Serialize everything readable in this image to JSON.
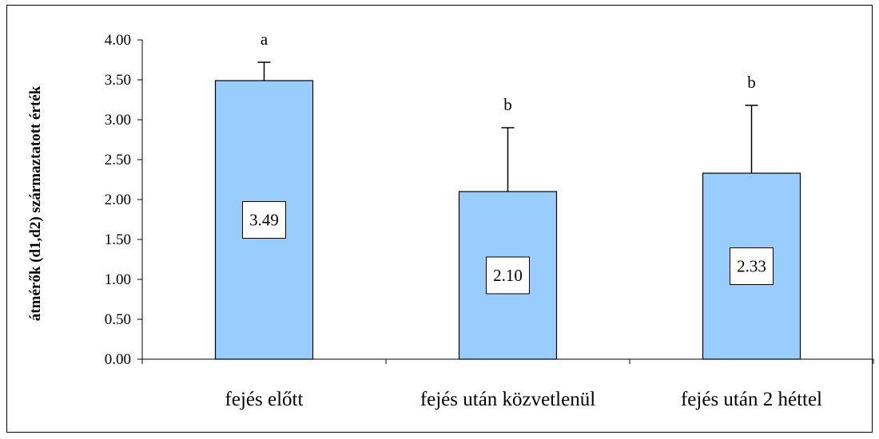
{
  "chart_data": {
    "type": "bar",
    "title": "",
    "xlabel": "",
    "ylabel": "átmérők (d1,d2) származtatott érték",
    "categories": [
      "fejés előtt",
      "fejés után közvetlenül",
      "fejés után 2 héttel"
    ],
    "values": [
      3.49,
      2.1,
      2.33
    ],
    "value_labels": [
      "3.49",
      "2.10",
      "2.33"
    ],
    "error_upper": [
      3.72,
      2.9,
      3.18
    ],
    "significance": [
      "a",
      "b",
      "b"
    ],
    "ylim": [
      0,
      4
    ],
    "yticks": [
      "0.00",
      "0.50",
      "1.00",
      "1.50",
      "2.00",
      "2.50",
      "3.00",
      "3.50",
      "4.00"
    ],
    "grid": false,
    "legend": "none",
    "bar_color": "#99ccff",
    "bar_edge_color": "#000000"
  }
}
